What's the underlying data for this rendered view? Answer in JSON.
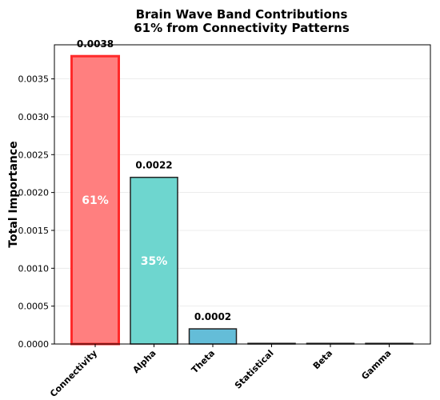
{
  "chart_data": {
    "type": "bar",
    "title": [
      "Brain Wave Band Contributions",
      "61% from Connectivity Patterns"
    ],
    "ylabel": "Total Importance",
    "xlabel": "",
    "ylim": [
      0,
      0.00395
    ],
    "yticks": [
      "0.0000",
      "0.0005",
      "0.0010",
      "0.0015",
      "0.0020",
      "0.0025",
      "0.0030",
      "0.0035"
    ],
    "ytick_values": [
      0,
      0.0005,
      0.001,
      0.0015,
      0.002,
      0.0025,
      0.003,
      0.0035
    ],
    "grid": true,
    "categories": [
      "Connectivity",
      "Alpha",
      "Theta",
      "Statistical",
      "Beta",
      "Gamma"
    ],
    "values": [
      0.0038,
      0.0022,
      0.0002,
      0.0,
      0.0,
      0.0
    ],
    "value_labels": [
      "0.0038",
      "0.0022",
      "0.0002",
      "",
      "",
      ""
    ],
    "percent_labels": [
      "61%",
      "35%",
      "",
      "",
      "",
      ""
    ],
    "colors": [
      "#ff7f7f",
      "#6ed6cf",
      "#64bdd8",
      "#96d8c4",
      "#f7e17c",
      "#d8a8d8"
    ],
    "edge_colors": [
      "#ff2a2a",
      "#222222",
      "#222222",
      "#222222",
      "#222222",
      "#222222"
    ]
  }
}
